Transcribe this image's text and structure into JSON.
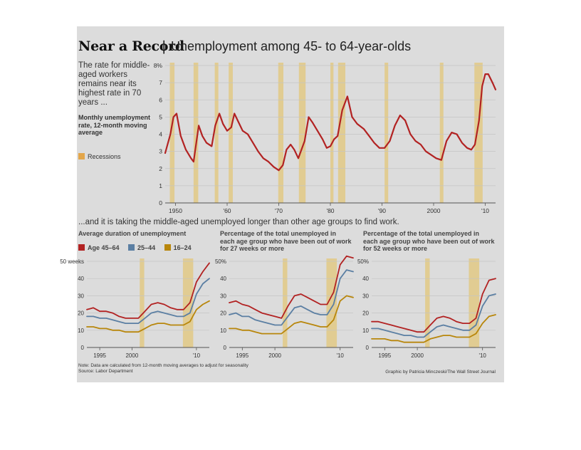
{
  "header": {
    "title_bold": "Near a Record",
    "separator": "|",
    "title_rest": "Unemployment among 45- to 64-year-olds"
  },
  "intro_text": "The rate for middle-aged workers remains near its highest rate in 70 years ...",
  "metric_label": "Monthly unemployment rate, 12-month moving average",
  "legend": {
    "recessions": "Recessions"
  },
  "section2_text": "...and it is taking the middle-aged unemployed longer than other age groups to find work.",
  "panel_titles": [
    "Average duration of unemployment",
    "Percentage of the total unemployed in each age group who have been out of work for 27 weeks or more",
    "Percentage of the total unemployed in each age group who have been out of work for 52 weeks or more"
  ],
  "age_legend": [
    "Age 45–64",
    "25–44",
    "16–24"
  ],
  "note": "Note: Data are calculated from 12-month moving averages to adjust for seasonality",
  "source": "Source: Labor Department",
  "credit": "Graphic by Patricia Minczeski/The Wall Street Journal",
  "colors": {
    "background": "#dcdcdc",
    "line_main": "#b22222",
    "recession": "#e3c77a",
    "age_45_64": "#b22222",
    "age_25_44": "#5b7fa3",
    "age_16_24": "#b8860b"
  },
  "chart_data": [
    {
      "type": "line",
      "ylim": [
        0,
        8
      ],
      "xlim": [
        1948,
        2012
      ],
      "y_ticks": [
        "0",
        "1",
        "2",
        "3",
        "4",
        "5",
        "6",
        "7",
        "8%"
      ],
      "x_ticks": [
        "1950",
        "'60",
        "'70",
        "'80",
        "'90",
        "2000",
        "'10"
      ],
      "x_tick_values": [
        1950,
        1960,
        1970,
        1980,
        1990,
        2000,
        2010
      ],
      "recessions": [
        [
          1948.9,
          1949.8
        ],
        [
          1953.5,
          1954.4
        ],
        [
          1957.6,
          1958.3
        ],
        [
          1960.3,
          1961.1
        ],
        [
          1969.9,
          1970.9
        ],
        [
          1973.9,
          1975.2
        ],
        [
          1980.0,
          1980.6
        ],
        [
          1981.5,
          1982.9
        ],
        [
          1990.5,
          1991.2
        ],
        [
          2001.2,
          2001.9
        ],
        [
          2007.9,
          2009.5
        ]
      ],
      "series": [
        {
          "x": [
            1948,
            1949,
            1949.6,
            1950.2,
            1951,
            1952,
            1953,
            1953.5,
            1954.5,
            1955.2,
            1956,
            1957,
            1957.7,
            1958.5,
            1959.2,
            1960,
            1960.8,
            1961.4,
            1962.2,
            1963,
            1964,
            1965,
            1966,
            1967,
            1968,
            1969,
            1970,
            1970.8,
            1971.5,
            1972.3,
            1973,
            1973.8,
            1975.0,
            1975.8,
            1976.5,
            1977.5,
            1978.5,
            1979.3,
            1980,
            1980.7,
            1981.4,
            1982.3,
            1983.3,
            1984.2,
            1985.2,
            1986.5,
            1987.5,
            1988.5,
            1989.5,
            1990.5,
            1991.5,
            1992.5,
            1993.5,
            1994.5,
            1995.5,
            1996.5,
            1997.5,
            1998.5,
            1999.5,
            2000.5,
            2001.5,
            2002.5,
            2003.5,
            2004.5,
            2005.5,
            2006.5,
            2007.3,
            2008.0,
            2008.8,
            2009.4,
            2010.0,
            2010.6,
            2011.4,
            2012
          ],
          "y": [
            2.9,
            4.0,
            5.0,
            5.2,
            3.9,
            3.1,
            2.6,
            2.4,
            4.5,
            3.9,
            3.5,
            3.3,
            4.5,
            5.2,
            4.6,
            4.2,
            4.4,
            5.2,
            4.7,
            4.2,
            4.0,
            3.5,
            3.0,
            2.6,
            2.4,
            2.1,
            1.9,
            2.2,
            3.1,
            3.4,
            3.1,
            2.6,
            3.6,
            5.0,
            4.7,
            4.2,
            3.7,
            3.2,
            3.3,
            3.7,
            3.9,
            5.4,
            6.2,
            5.0,
            4.6,
            4.3,
            3.9,
            3.5,
            3.2,
            3.2,
            3.6,
            4.5,
            5.1,
            4.8,
            4.0,
            3.6,
            3.4,
            3.0,
            2.8,
            2.6,
            2.5,
            3.6,
            4.1,
            4.0,
            3.5,
            3.2,
            3.1,
            3.4,
            4.8,
            6.8,
            7.5,
            7.5,
            7.0,
            6.6
          ]
        }
      ]
    },
    {
      "type": "line",
      "title": "Average duration of unemployment",
      "ylim": [
        0,
        50
      ],
      "xlim": [
        1993,
        2012
      ],
      "y_ticks": [
        "0",
        "10",
        "20",
        "30",
        "40",
        "50 weeks"
      ],
      "x_ticks": [
        "1995",
        "2000",
        "'10"
      ],
      "x_tick_values": [
        1995,
        2000,
        2010
      ],
      "recessions": [
        [
          2001.2,
          2001.9
        ],
        [
          2007.9,
          2009.5
        ]
      ],
      "x": [
        1993,
        1994,
        1995,
        1996,
        1997,
        1998,
        1999,
        2000,
        2001,
        2002,
        2003,
        2004,
        2005,
        2006,
        2007,
        2008,
        2009,
        2010,
        2011,
        2012
      ],
      "series": [
        {
          "name": "Age 45–64",
          "values": [
            22,
            23,
            21,
            21,
            20,
            18,
            17,
            17,
            17,
            21,
            25,
            26,
            25,
            23,
            22,
            22,
            26,
            38,
            44,
            49
          ]
        },
        {
          "name": "25–44",
          "values": [
            18,
            18,
            17,
            17,
            16,
            15,
            14,
            14,
            14,
            17,
            20,
            21,
            20,
            19,
            18,
            18,
            20,
            31,
            37,
            40
          ]
        },
        {
          "name": "16–24",
          "values": [
            12,
            12,
            11,
            11,
            10,
            10,
            9,
            9,
            9,
            11,
            13,
            14,
            14,
            13,
            13,
            13,
            15,
            22,
            25,
            27
          ]
        }
      ]
    },
    {
      "type": "line",
      "title": "Percentage of the total unemployed in each age group who have been out of work for 27 weeks or more",
      "ylim": [
        0,
        50
      ],
      "xlim": [
        1993,
        2012
      ],
      "y_ticks": [
        "0",
        "10",
        "20",
        "30",
        "40",
        "50%"
      ],
      "x_ticks": [
        "1995",
        "2000",
        "'10"
      ],
      "x_tick_values": [
        1995,
        2000,
        2010
      ],
      "recessions": [
        [
          2001.2,
          2001.9
        ],
        [
          2007.9,
          2009.5
        ]
      ],
      "x": [
        1993,
        1994,
        1995,
        1996,
        1997,
        1998,
        1999,
        2000,
        2001,
        2002,
        2003,
        2004,
        2005,
        2006,
        2007,
        2008,
        2009,
        2010,
        2011,
        2012
      ],
      "series": [
        {
          "name": "Age 45–64",
          "values": [
            26,
            27,
            25,
            24,
            22,
            20,
            19,
            18,
            17,
            24,
            30,
            31,
            29,
            27,
            25,
            25,
            32,
            48,
            53,
            52
          ]
        },
        {
          "name": "25–44",
          "values": [
            19,
            20,
            18,
            18,
            16,
            15,
            14,
            13,
            13,
            18,
            23,
            24,
            22,
            20,
            19,
            19,
            25,
            40,
            45,
            44
          ]
        },
        {
          "name": "16–24",
          "values": [
            11,
            11,
            10,
            10,
            9,
            8,
            8,
            8,
            8,
            11,
            14,
            15,
            14,
            13,
            12,
            12,
            16,
            27,
            30,
            29
          ]
        }
      ]
    },
    {
      "type": "line",
      "title": "Percentage of the total unemployed in each age group who have been out of work for 52 weeks or more",
      "ylim": [
        0,
        50
      ],
      "xlim": [
        1993,
        2012
      ],
      "y_ticks": [
        "0",
        "10",
        "20",
        "30",
        "40",
        "50%"
      ],
      "x_ticks": [
        "1995",
        "2000",
        "'10"
      ],
      "x_tick_values": [
        1995,
        2000,
        2010
      ],
      "recessions": [
        [
          2001.2,
          2001.9
        ],
        [
          2007.9,
          2009.5
        ]
      ],
      "x": [
        1993,
        1994,
        1995,
        1996,
        1997,
        1998,
        1999,
        2000,
        2001,
        2002,
        2003,
        2004,
        2005,
        2006,
        2007,
        2008,
        2009,
        2010,
        2011,
        2012
      ],
      "series": [
        {
          "name": "Age 45–64",
          "values": [
            15,
            15,
            14,
            13,
            12,
            11,
            10,
            9,
            9,
            13,
            17,
            18,
            17,
            15,
            14,
            14,
            17,
            31,
            39,
            40
          ]
        },
        {
          "name": "25–44",
          "values": [
            11,
            11,
            10,
            9,
            8,
            7,
            7,
            6,
            6,
            9,
            12,
            13,
            12,
            11,
            10,
            10,
            13,
            24,
            30,
            31
          ]
        },
        {
          "name": "16–24",
          "values": [
            5,
            5,
            5,
            4,
            4,
            3,
            3,
            3,
            3,
            5,
            6,
            7,
            7,
            6,
            6,
            6,
            8,
            14,
            18,
            19
          ]
        }
      ]
    }
  ]
}
